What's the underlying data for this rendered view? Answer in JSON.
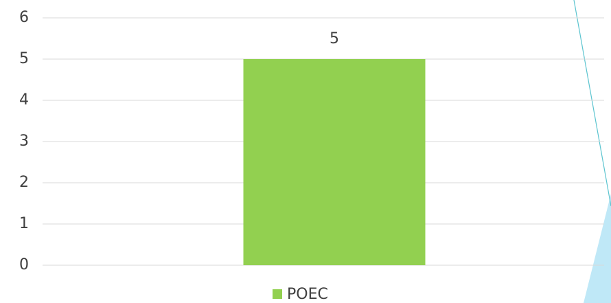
{
  "chart_data": {
    "type": "bar",
    "categories": [
      null
    ],
    "series": [
      {
        "name": "POEC",
        "color": "#92d050",
        "values": [
          5
        ]
      }
    ],
    "ylim": [
      0,
      6
    ],
    "yticks": [
      0,
      1,
      2,
      3,
      4,
      5,
      6
    ],
    "grid": true,
    "legend": "bottom"
  }
}
